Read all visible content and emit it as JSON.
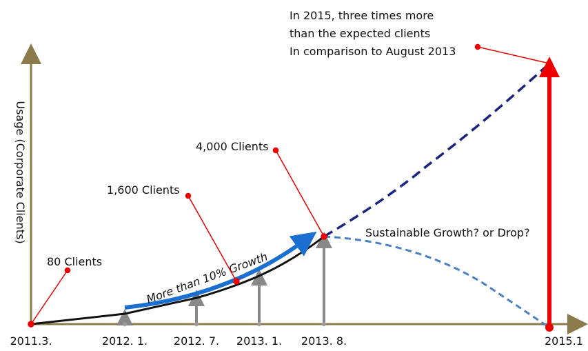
{
  "diagram": {
    "y_axis_label": "Usage (Corporate Clients)",
    "x_labels": [
      "2011.3.",
      "2012. 1.",
      "2012. 7.",
      "2013. 1.",
      "2013. 8.",
      "2015.1"
    ],
    "callouts": [
      "80 Clients",
      "1,600 Clients",
      "4,000 Clients"
    ],
    "growth_label": "More than 10% Growth",
    "scenario_label": "Sustainable Growth? or Drop?",
    "annotation": [
      "In 2015, three times more",
      "than the expected clients",
      "In comparison to August 2013"
    ]
  }
}
